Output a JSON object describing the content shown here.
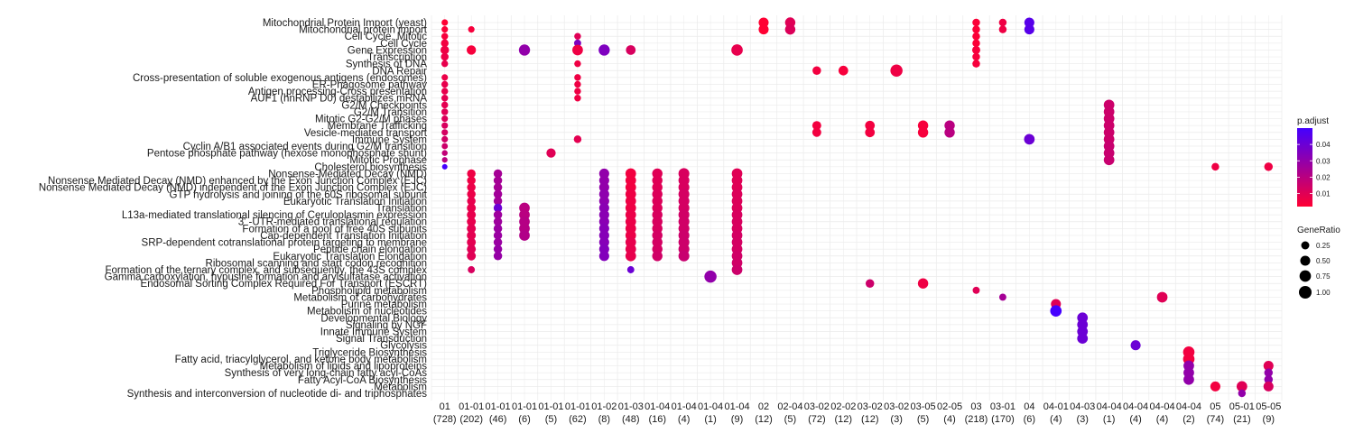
{
  "chart_data": {
    "type": "scatter",
    "y_categories": [
      "Mitochondrial Protein Import (yeast)",
      "Mitochondrial protein import",
      "Cell Cycle, Mitotic",
      "Cell Cycle",
      "Gene Expression",
      "Transcription",
      "Synthesis of DNA",
      "DNA Repair",
      "Cross-presentation of soluble exogenous antigens (endosomes)",
      "ER-Phagosome pathway",
      "Antigen processing-Cross presentation",
      "AUF1 (hnRNP D0) destabilizes mRNA",
      "G2/M Checkpoints",
      "G2/M Transition",
      "Mitotic G2-G2/M phases",
      "Membrane Trafficking",
      "Vesicle-mediated transport",
      "Immune System",
      "Cyclin A/B1 associated events during G2/M transition",
      "Pentose phosphate pathway (hexose monophosphate shunt)",
      "Mitotic Prophase",
      "Cholesterol biosynthesis",
      "Nonsense-Mediated Decay (NMD)",
      "Nonsense Mediated Decay (NMD) enhanced by the Exon Junction Complex (EJC)",
      "Nonsense Mediated Decay (NMD) independent of the Exon Junction Complex (EJC)",
      "GTP hydrolysis and joining of the 60S ribosomal subunit",
      "Eukaryotic Translation Initiation",
      "Translation",
      "L13a-mediated translational silencing of Ceruloplasmin expression",
      "3' -UTR-mediated translational regulation",
      "Formation of a pool of free 40S subunits",
      "Cap-dependent Translation Initiation",
      "SRP-dependent cotranslational protein targeting to membrane",
      "Peptide chain elongation",
      "Eukaryotic Translation Elongation",
      "Ribosomal scanning and start codon recognition",
      "Formation of the ternary complex, and subsequently, the 43S complex",
      "Gamma carboxylation, hypusine formation and arylsulfatase activation",
      "Endosomal Sorting Complex Required For Transport (ESCRT)",
      "Phospholipid metabolism",
      "Metabolism of carbohydrates",
      "Purine metabolism",
      "Metabolism of nucleotides",
      "Developmental Biology",
      "Signaling by NGF",
      "Innate Immune System",
      "Signal Transduction",
      "Glycolysis",
      "Triglyceride Biosynthesis",
      "Fatty acid, triacylglycerol, and ketone body metabolism",
      "Metabolism of lipids and lipoproteins",
      "Synthesis of very long-chain fatty acyl-CoAs",
      "Fatty Acyl-CoA Biosynthesis",
      "Metabolism",
      "Synthesis and interconversion of nucleotide di- and triphosphates"
    ],
    "x_categories": [
      {
        "label": "01",
        "count": "(728)"
      },
      {
        "label": "01-01",
        "count": "(202)"
      },
      {
        "label": "01-01",
        "count": "(46)"
      },
      {
        "label": "01-01",
        "count": "(6)"
      },
      {
        "label": "01-01",
        "count": "(5)"
      },
      {
        "label": "01-01",
        "count": "(62)"
      },
      {
        "label": "01-02",
        "count": "(8)"
      },
      {
        "label": "01-03",
        "count": "(48)"
      },
      {
        "label": "01-04",
        "count": "(16)"
      },
      {
        "label": "01-04",
        "count": "(4)"
      },
      {
        "label": "01-04",
        "count": "(1)"
      },
      {
        "label": "01-04",
        "count": "(9)"
      },
      {
        "label": "02",
        "count": "(12)"
      },
      {
        "label": "02-04",
        "count": "(5)"
      },
      {
        "label": "03-02",
        "count": "(72)"
      },
      {
        "label": "02-02",
        "count": "(12)"
      },
      {
        "label": "03-02",
        "count": "(12)"
      },
      {
        "label": "03-02",
        "count": "(3)"
      },
      {
        "label": "03-05",
        "count": "(5)"
      },
      {
        "label": "02-05",
        "count": "(4)"
      },
      {
        "label": "03",
        "count": "(218)"
      },
      {
        "label": "03-01",
        "count": "(170)"
      },
      {
        "label": "04",
        "count": "(6)"
      },
      {
        "label": "04-01",
        "count": "(4)"
      },
      {
        "label": "04-03",
        "count": "(3)"
      },
      {
        "label": "04-04",
        "count": "(1)"
      },
      {
        "label": "04-04",
        "count": "(4)"
      },
      {
        "label": "04-04",
        "count": "(4)"
      },
      {
        "label": "04-04",
        "count": "(2)"
      },
      {
        "label": "05",
        "count": "(74)"
      },
      {
        "label": "05-01",
        "count": "(21)"
      },
      {
        "label": "05-05",
        "count": "(9)"
      }
    ],
    "points": [
      [
        0,
        0,
        0.1,
        0.002
      ],
      [
        1,
        0,
        0.1,
        0.003
      ],
      [
        2,
        0,
        0.12,
        0.004
      ],
      [
        3,
        0,
        0.2,
        0.005
      ],
      [
        4,
        0,
        0.3,
        0.006
      ],
      [
        5,
        0,
        0.2,
        0.007
      ],
      [
        6,
        0,
        0.12,
        0.008
      ],
      [
        8,
        0,
        0.1,
        0.007
      ],
      [
        9,
        0,
        0.12,
        0.008
      ],
      [
        10,
        0,
        0.12,
        0.008
      ],
      [
        11,
        0,
        0.12,
        0.009
      ],
      [
        12,
        0,
        0.12,
        0.009
      ],
      [
        13,
        0,
        0.12,
        0.01
      ],
      [
        14,
        0,
        0.1,
        0.011
      ],
      [
        15,
        0,
        0.1,
        0.012
      ],
      [
        16,
        0,
        0.1,
        0.013
      ],
      [
        17,
        0,
        0.1,
        0.014
      ],
      [
        18,
        0,
        0.08,
        0.015
      ],
      [
        19,
        0,
        0.06,
        0.018
      ],
      [
        20,
        0,
        0.05,
        0.02
      ],
      [
        21,
        0,
        0.04,
        0.05
      ],
      [
        1,
        1,
        0.1,
        0.004
      ],
      [
        4,
        1,
        0.4,
        0.004
      ],
      [
        22,
        1,
        0.3,
        0.006
      ],
      [
        23,
        1,
        0.3,
        0.006
      ],
      [
        24,
        1,
        0.3,
        0.007
      ],
      [
        25,
        1,
        0.3,
        0.007
      ],
      [
        26,
        1,
        0.3,
        0.008
      ],
      [
        27,
        1,
        0.35,
        0.008
      ],
      [
        28,
        1,
        0.35,
        0.008
      ],
      [
        29,
        1,
        0.35,
        0.008
      ],
      [
        30,
        1,
        0.35,
        0.009
      ],
      [
        31,
        1,
        0.35,
        0.009
      ],
      [
        32,
        1,
        0.35,
        0.009
      ],
      [
        33,
        1,
        0.35,
        0.01
      ],
      [
        34,
        1,
        0.35,
        0.01
      ],
      [
        36,
        1,
        0.15,
        0.012
      ],
      [
        22,
        2,
        0.3,
        0.025
      ],
      [
        23,
        2,
        0.3,
        0.025
      ],
      [
        24,
        2,
        0.3,
        0.025
      ],
      [
        25,
        2,
        0.3,
        0.026
      ],
      [
        26,
        2,
        0.3,
        0.026
      ],
      [
        27,
        2,
        0.3,
        0.04
      ],
      [
        28,
        2,
        0.3,
        0.027
      ],
      [
        29,
        2,
        0.3,
        0.027
      ],
      [
        30,
        2,
        0.3,
        0.028
      ],
      [
        31,
        2,
        0.3,
        0.028
      ],
      [
        32,
        2,
        0.3,
        0.028
      ],
      [
        33,
        2,
        0.3,
        0.029
      ],
      [
        34,
        2,
        0.3,
        0.029
      ],
      [
        4,
        3,
        0.7,
        0.03
      ],
      [
        27,
        3,
        0.6,
        0.02
      ],
      [
        28,
        3,
        0.6,
        0.02
      ],
      [
        29,
        3,
        0.6,
        0.021
      ],
      [
        30,
        3,
        0.6,
        0.021
      ],
      [
        31,
        3,
        0.6,
        0.022
      ],
      [
        19,
        4,
        0.4,
        0.01
      ],
      [
        2,
        5,
        0.12,
        0.01
      ],
      [
        3,
        5,
        0.15,
        0.035
      ],
      [
        4,
        5,
        0.6,
        0.006
      ],
      [
        6,
        5,
        0.12,
        0.006
      ],
      [
        8,
        5,
        0.12,
        0.006
      ],
      [
        9,
        5,
        0.12,
        0.006
      ],
      [
        10,
        5,
        0.12,
        0.006
      ],
      [
        11,
        5,
        0.12,
        0.006
      ],
      [
        17,
        5,
        0.2,
        0.009
      ],
      [
        4,
        6,
        0.7,
        0.035
      ],
      [
        22,
        6,
        0.5,
        0.03
      ],
      [
        23,
        6,
        0.5,
        0.03
      ],
      [
        24,
        6,
        0.5,
        0.03
      ],
      [
        25,
        6,
        0.5,
        0.031
      ],
      [
        26,
        6,
        0.5,
        0.031
      ],
      [
        27,
        6,
        0.5,
        0.032
      ],
      [
        28,
        6,
        0.5,
        0.032
      ],
      [
        29,
        6,
        0.5,
        0.032
      ],
      [
        30,
        6,
        0.5,
        0.033
      ],
      [
        31,
        6,
        0.5,
        0.033
      ],
      [
        32,
        6,
        0.5,
        0.033
      ],
      [
        33,
        6,
        0.5,
        0.034
      ],
      [
        34,
        6,
        0.5,
        0.034
      ],
      [
        4,
        7,
        0.45,
        0.012
      ],
      [
        22,
        7,
        0.6,
        0.005
      ],
      [
        23,
        7,
        0.6,
        0.005
      ],
      [
        24,
        7,
        0.6,
        0.005
      ],
      [
        25,
        7,
        0.6,
        0.006
      ],
      [
        26,
        7,
        0.6,
        0.006
      ],
      [
        27,
        7,
        0.6,
        0.006
      ],
      [
        28,
        7,
        0.6,
        0.007
      ],
      [
        29,
        7,
        0.6,
        0.007
      ],
      [
        30,
        7,
        0.6,
        0.007
      ],
      [
        31,
        7,
        0.6,
        0.007
      ],
      [
        32,
        7,
        0.6,
        0.008
      ],
      [
        33,
        7,
        0.6,
        0.008
      ],
      [
        34,
        7,
        0.6,
        0.008
      ],
      [
        36,
        7,
        0.15,
        0.04
      ],
      [
        22,
        8,
        0.55,
        0.01
      ],
      [
        23,
        8,
        0.55,
        0.01
      ],
      [
        24,
        8,
        0.55,
        0.01
      ],
      [
        25,
        8,
        0.55,
        0.011
      ],
      [
        26,
        8,
        0.55,
        0.011
      ],
      [
        27,
        8,
        0.55,
        0.011
      ],
      [
        28,
        8,
        0.55,
        0.012
      ],
      [
        29,
        8,
        0.55,
        0.012
      ],
      [
        30,
        8,
        0.55,
        0.012
      ],
      [
        31,
        8,
        0.55,
        0.013
      ],
      [
        32,
        8,
        0.55,
        0.013
      ],
      [
        33,
        8,
        0.55,
        0.013
      ],
      [
        34,
        8,
        0.55,
        0.014
      ],
      [
        22,
        9,
        0.65,
        0.012
      ],
      [
        23,
        9,
        0.65,
        0.012
      ],
      [
        24,
        9,
        0.65,
        0.012
      ],
      [
        25,
        9,
        0.65,
        0.013
      ],
      [
        26,
        9,
        0.65,
        0.013
      ],
      [
        27,
        9,
        0.65,
        0.013
      ],
      [
        28,
        9,
        0.65,
        0.014
      ],
      [
        29,
        9,
        0.65,
        0.014
      ],
      [
        30,
        9,
        0.65,
        0.014
      ],
      [
        31,
        9,
        0.65,
        0.015
      ],
      [
        32,
        9,
        0.65,
        0.015
      ],
      [
        33,
        9,
        0.65,
        0.015
      ],
      [
        34,
        9,
        0.65,
        0.016
      ],
      [
        37,
        10,
        0.9,
        0.03
      ],
      [
        4,
        11,
        0.75,
        0.008
      ],
      [
        22,
        11,
        0.6,
        0.01
      ],
      [
        23,
        11,
        0.6,
        0.01
      ],
      [
        24,
        11,
        0.6,
        0.01
      ],
      [
        25,
        11,
        0.6,
        0.011
      ],
      [
        26,
        11,
        0.6,
        0.011
      ],
      [
        27,
        11,
        0.6,
        0.011
      ],
      [
        28,
        11,
        0.6,
        0.012
      ],
      [
        29,
        11,
        0.6,
        0.012
      ],
      [
        30,
        11,
        0.6,
        0.012
      ],
      [
        31,
        11,
        0.6,
        0.013
      ],
      [
        32,
        11,
        0.6,
        0.013
      ],
      [
        33,
        11,
        0.6,
        0.013
      ],
      [
        34,
        11,
        0.6,
        0.014
      ],
      [
        35,
        11,
        0.6,
        0.014
      ],
      [
        36,
        11,
        0.6,
        0.015
      ],
      [
        0,
        12,
        0.5,
        0.002
      ],
      [
        1,
        12,
        0.5,
        0.002
      ],
      [
        0,
        13,
        0.55,
        0.01
      ],
      [
        1,
        13,
        0.55,
        0.011
      ],
      [
        7,
        14,
        0.3,
        0.005
      ],
      [
        15,
        14,
        0.35,
        0.005
      ],
      [
        16,
        14,
        0.35,
        0.005
      ],
      [
        7,
        15,
        0.45,
        0.004
      ],
      [
        15,
        16,
        0.45,
        0.005
      ],
      [
        16,
        16,
        0.45,
        0.005
      ],
      [
        38,
        16,
        0.3,
        0.015
      ],
      [
        7,
        17,
        0.9,
        0.006
      ],
      [
        15,
        18,
        0.55,
        0.004
      ],
      [
        16,
        18,
        0.55,
        0.004
      ],
      [
        38,
        18,
        0.55,
        0.006
      ],
      [
        15,
        19,
        0.55,
        0.02
      ],
      [
        16,
        19,
        0.55,
        0.02
      ],
      [
        0,
        20,
        0.2,
        0.003
      ],
      [
        1,
        20,
        0.2,
        0.003
      ],
      [
        2,
        20,
        0.2,
        0.003
      ],
      [
        3,
        20,
        0.2,
        0.003
      ],
      [
        4,
        20,
        0.25,
        0.004
      ],
      [
        5,
        20,
        0.2,
        0.004
      ],
      [
        6,
        20,
        0.2,
        0.004
      ],
      [
        39,
        20,
        0.15,
        0.01
      ],
      [
        0,
        21,
        0.2,
        0.006
      ],
      [
        1,
        21,
        0.2,
        0.006
      ],
      [
        40,
        21,
        0.15,
        0.025
      ],
      [
        0,
        22,
        0.5,
        0.045
      ],
      [
        1,
        22,
        0.5,
        0.045
      ],
      [
        17,
        22,
        0.6,
        0.04
      ],
      [
        41,
        23,
        0.5,
        0.01
      ],
      [
        42,
        23,
        0.75,
        0.05
      ],
      [
        43,
        24,
        0.6,
        0.04
      ],
      [
        44,
        24,
        0.6,
        0.04
      ],
      [
        45,
        24,
        0.6,
        0.04
      ],
      [
        46,
        24,
        0.6,
        0.04
      ],
      [
        12,
        25,
        0.6,
        0.015
      ],
      [
        13,
        25,
        0.6,
        0.015
      ],
      [
        14,
        25,
        0.6,
        0.015
      ],
      [
        15,
        25,
        0.6,
        0.015
      ],
      [
        16,
        25,
        0.6,
        0.015
      ],
      [
        17,
        25,
        0.6,
        0.015
      ],
      [
        18,
        25,
        0.6,
        0.016
      ],
      [
        19,
        25,
        0.6,
        0.016
      ],
      [
        20,
        25,
        0.6,
        0.016
      ],
      [
        47,
        26,
        0.5,
        0.04
      ],
      [
        40,
        27,
        0.6,
        0.01
      ],
      [
        48,
        28,
        0.75,
        0.005
      ],
      [
        49,
        28,
        0.75,
        0.005
      ],
      [
        50,
        28,
        0.6,
        0.03
      ],
      [
        51,
        28,
        0.6,
        0.03
      ],
      [
        52,
        28,
        0.6,
        0.03
      ],
      [
        21,
        29,
        0.2,
        0.006
      ],
      [
        53,
        29,
        0.5,
        0.005
      ],
      [
        53,
        30,
        0.6,
        0.01
      ],
      [
        54,
        30,
        0.2,
        0.03
      ],
      [
        21,
        31,
        0.3,
        0.006
      ],
      [
        50,
        31,
        0.5,
        0.01
      ],
      [
        51,
        31,
        0.3,
        0.03
      ],
      [
        52,
        31,
        0.3,
        0.03
      ],
      [
        53,
        31,
        0.5,
        0.012
      ]
    ],
    "legend_color": {
      "title": "p.adjust",
      "ticks": [
        "0.04",
        "0.03",
        "0.02",
        "0.01"
      ]
    },
    "legend_size": {
      "title": "GeneRatio",
      "ticks": [
        "0.25",
        "0.50",
        "0.75",
        "1.00"
      ]
    },
    "colors": {
      "low": "#FF0000",
      "high": "#5B00FF",
      "grid": "#EBEBEB"
    },
    "legend_position": "right",
    "grid": true
  }
}
